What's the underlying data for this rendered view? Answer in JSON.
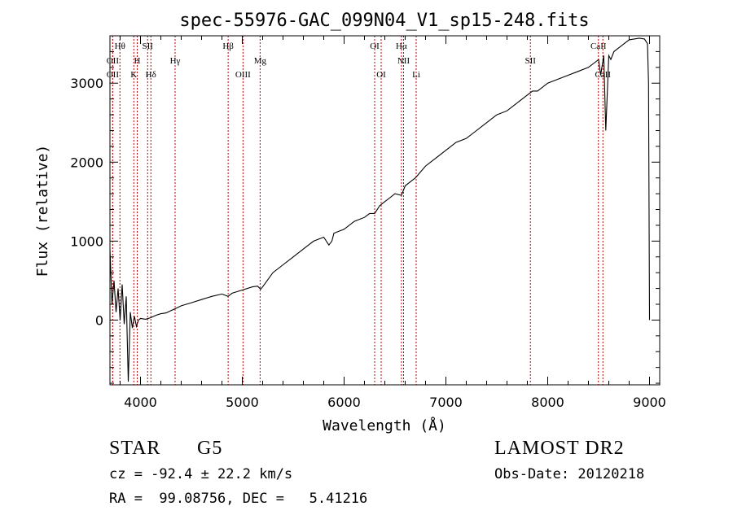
{
  "chart_data": {
    "type": "line",
    "title": "spec-55976-GAC_099N04_V1_sp15-248.fits",
    "xlabel": "Wavelength (Å)",
    "ylabel": "Flux (relative)",
    "xlim": [
      3700,
      9100
    ],
    "ylim": [
      -820,
      3600
    ],
    "xticks": [
      4000,
      5000,
      6000,
      7000,
      8000,
      9000
    ],
    "yticks": [
      0,
      1000,
      2000,
      3000
    ],
    "xtick_labels": [
      "4000",
      "5000",
      "6000",
      "7000",
      "8000",
      "9000"
    ],
    "ytick_labels": [
      "0",
      "1000",
      "2000",
      "3000"
    ],
    "grid": false,
    "line_color": "#000000",
    "marker_color": "#cc0000",
    "series": [
      {
        "x": [
          3700,
          3720,
          3740,
          3760,
          3780,
          3800,
          3820,
          3840,
          3860,
          3880,
          3900,
          3920,
          3940,
          3960,
          3980,
          4000,
          4050,
          4100,
          4150,
          4200,
          4250,
          4300,
          4350,
          4400,
          4500,
          4600,
          4700,
          4800,
          4860,
          4900,
          5000,
          5100,
          5150,
          5180,
          5200,
          5300,
          5400,
          5500,
          5600,
          5700,
          5800,
          5850,
          5880,
          5900,
          6000,
          6100,
          6200,
          6250,
          6300,
          6350,
          6400,
          6450,
          6500,
          6563,
          6600,
          6700,
          6800,
          6900,
          7000,
          7100,
          7200,
          7300,
          7400,
          7500,
          7600,
          7700,
          7800,
          7850,
          7900,
          8000,
          8100,
          8200,
          8300,
          8400,
          8450,
          8500,
          8520,
          8550,
          8570,
          8600,
          8620,
          8650,
          8700,
          8750,
          8800,
          8850,
          8900,
          8950,
          8980,
          8990,
          9000
        ],
        "y": [
          900,
          200,
          500,
          100,
          400,
          0,
          450,
          -50,
          300,
          -780,
          100,
          -100,
          50,
          -80,
          0,
          20,
          10,
          30,
          60,
          80,
          90,
          120,
          150,
          180,
          220,
          260,
          300,
          330,
          300,
          340,
          380,
          420,
          430,
          390,
          420,
          600,
          700,
          800,
          900,
          1000,
          1050,
          950,
          1000,
          1100,
          1150,
          1250,
          1300,
          1350,
          1350,
          1450,
          1500,
          1550,
          1600,
          1580,
          1700,
          1800,
          1950,
          2050,
          2150,
          2250,
          2300,
          2400,
          2500,
          2600,
          2650,
          2750,
          2850,
          2900,
          2900,
          3000,
          3050,
          3100,
          3150,
          3200,
          3250,
          3300,
          3100,
          3350,
          2400,
          3350,
          3300,
          3400,
          3450,
          3500,
          3550,
          3560,
          3570,
          3560,
          3500,
          3000,
          0
        ]
      }
    ],
    "line_markers": [
      {
        "label": "Hθ",
        "x": 3798,
        "row": 1
      },
      {
        "label": "OII",
        "x": 3727,
        "row": 2
      },
      {
        "label": "OII",
        "x": 3727,
        "row": 3
      },
      {
        "label": "SII",
        "x": 4070,
        "row": 1
      },
      {
        "label": "H",
        "x": 3968,
        "row": 2
      },
      {
        "label": "K",
        "x": 3934,
        "row": 3
      },
      {
        "label": "Hδ",
        "x": 4102,
        "row": 3
      },
      {
        "label": "Hγ",
        "x": 4340,
        "row": 2
      },
      {
        "label": "Hβ",
        "x": 4861,
        "row": 1
      },
      {
        "label": "OIII",
        "x": 5007,
        "row": 3
      },
      {
        "label": "Mg",
        "x": 5175,
        "row": 2
      },
      {
        "label": "OI",
        "x": 6300,
        "row": 1
      },
      {
        "label": "OI",
        "x": 6364,
        "row": 3
      },
      {
        "label": "Hα",
        "x": 6563,
        "row": 1
      },
      {
        "label": "NII",
        "x": 6584,
        "row": 2
      },
      {
        "label": "Li",
        "x": 6708,
        "row": 3
      },
      {
        "label": "SII",
        "x": 7830,
        "row": 2
      },
      {
        "label": "CaII",
        "x": 8498,
        "row": 1
      },
      {
        "label": "CaII",
        "x": 8542,
        "row": 3
      }
    ]
  },
  "info": {
    "class": "STAR",
    "subclass": "G5",
    "survey": "LAMOST DR2",
    "cz": "cz = -92.4 ± 22.2 km/s",
    "obs_date": "Obs-Date: 20120218",
    "radec": "RA =  99.08756, DEC =   5.41216"
  }
}
